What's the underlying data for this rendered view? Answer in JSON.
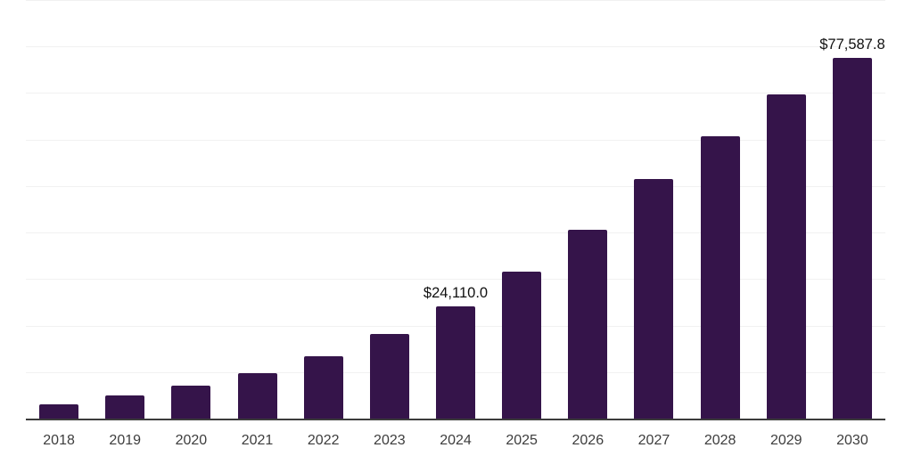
{
  "chart_data": {
    "type": "bar",
    "title": "",
    "xlabel": "",
    "ylabel": "",
    "categories": [
      "2018",
      "2019",
      "2020",
      "2021",
      "2022",
      "2023",
      "2024",
      "2025",
      "2026",
      "2027",
      "2028",
      "2029",
      "2030"
    ],
    "values": [
      3150,
      5050,
      7000,
      9800,
      13500,
      18250,
      24110.0,
      31650,
      40650,
      51550,
      60700,
      69800,
      77587.8
    ],
    "value_labels": {
      "2024": "$24,110.0",
      "2030": "$77,587.8"
    },
    "ylim": [
      0,
      90000
    ],
    "gridline_interval": 10000,
    "grid": "horizontal-only",
    "legend": "none",
    "colors": {
      "bar": "#35144a",
      "axis_line": "#3c3c3c",
      "gridline": "#f1f1f1",
      "value_label": "#111111",
      "tick_label": "#3d3d3d",
      "background": "#ffffff"
    }
  }
}
